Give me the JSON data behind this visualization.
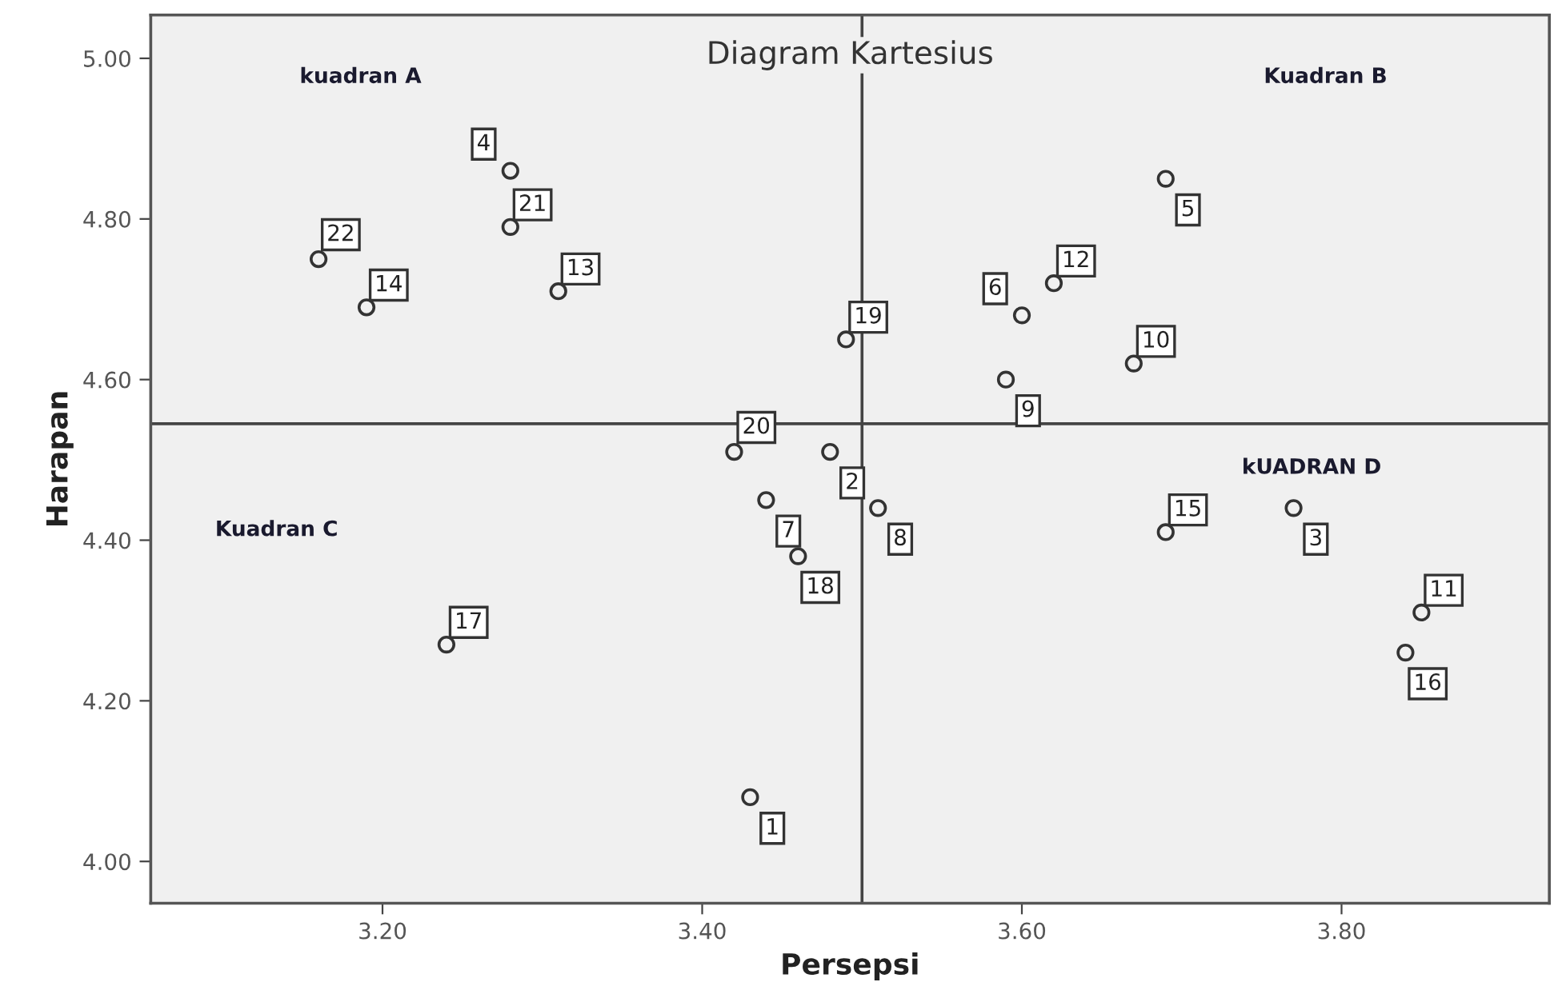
{
  "chart_data": {
    "type": "scatter",
    "title": "Diagram Kartesius",
    "xlabel": "Persepsi",
    "ylabel": "Harapan",
    "series": [
      {
        "color": "#333333",
        "marker": "circle",
        "x": [
          3.43,
          3.48,
          3.77,
          3.28,
          3.69,
          3.6,
          3.44,
          3.51,
          3.59,
          3.67,
          3.85,
          3.62,
          3.31,
          3.19,
          3.69,
          3.84,
          3.24,
          3.46,
          3.49,
          3.42,
          3.28,
          3.16
        ],
        "values": [
          4.08,
          4.51,
          4.44,
          4.86,
          4.85,
          4.68,
          4.45,
          4.44,
          4.6,
          4.62,
          4.31,
          4.72,
          4.71,
          4.69,
          4.41,
          4.26,
          4.27,
          4.38,
          4.65,
          4.51,
          4.79,
          4.75
        ]
      }
    ],
    "xlim": [
      3.055,
      3.93
    ],
    "ylim": [
      3.948,
      5.054
    ],
    "xticks": [
      {
        "value": 3.2,
        "label": "3.20"
      },
      {
        "value": 3.4,
        "label": "3.40"
      },
      {
        "value": 3.6,
        "label": "3.60"
      },
      {
        "value": 3.8,
        "label": "3.80"
      }
    ],
    "yticks": [
      {
        "value": 4.0,
        "label": "4.00"
      },
      {
        "value": 4.2,
        "label": "4.20"
      },
      {
        "value": 4.4,
        "label": "4.40"
      },
      {
        "value": 4.6,
        "label": "4.60"
      },
      {
        "value": 4.8,
        "label": "4.80"
      },
      {
        "value": 5.0,
        "label": "5.00"
      }
    ],
    "ref_lines": [
      {
        "axis": "x",
        "value": 3.5,
        "color": "#444444"
      },
      {
        "axis": "y",
        "value": 4.545,
        "color": "#444444"
      }
    ],
    "annotations": [
      "kuadran A",
      "Kuadran B",
      "Kuadran C",
      "kUADRAN D",
      {
        "text": "1",
        "x": 3.43,
        "y": 4.08
      },
      {
        "text": "2",
        "x": 3.48,
        "y": 4.51
      },
      {
        "text": "3",
        "x": 3.77,
        "y": 4.44
      },
      {
        "text": "4",
        "x": 3.28,
        "y": 4.86
      },
      {
        "text": "5",
        "x": 3.69,
        "y": 4.85
      },
      {
        "text": "6",
        "x": 3.6,
        "y": 4.68
      },
      {
        "text": "7",
        "x": 3.44,
        "y": 4.45
      },
      {
        "text": "8",
        "x": 3.51,
        "y": 4.44
      },
      {
        "text": "9",
        "x": 3.59,
        "y": 4.6
      },
      {
        "text": "10",
        "x": 3.67,
        "y": 4.62
      },
      {
        "text": "11",
        "x": 3.85,
        "y": 4.31
      },
      {
        "text": "12",
        "x": 3.62,
        "y": 4.72
      },
      {
        "text": "13",
        "x": 3.31,
        "y": 4.71
      },
      {
        "text": "14",
        "x": 3.19,
        "y": 4.69
      },
      {
        "text": "15",
        "x": 3.69,
        "y": 4.41
      },
      {
        "text": "16",
        "x": 3.84,
        "y": 4.26
      },
      {
        "text": "17",
        "x": 3.24,
        "y": 4.27
      },
      {
        "text": "18",
        "x": 3.46,
        "y": 4.38
      },
      {
        "text": "19",
        "x": 3.49,
        "y": 4.65
      },
      {
        "text": "20",
        "x": 3.42,
        "y": 4.51
      },
      {
        "text": "21",
        "x": 3.28,
        "y": 4.79
      },
      {
        "text": "22",
        "x": 3.16,
        "y": 4.75
      }
    ],
    "grid": false,
    "legend": false
  }
}
